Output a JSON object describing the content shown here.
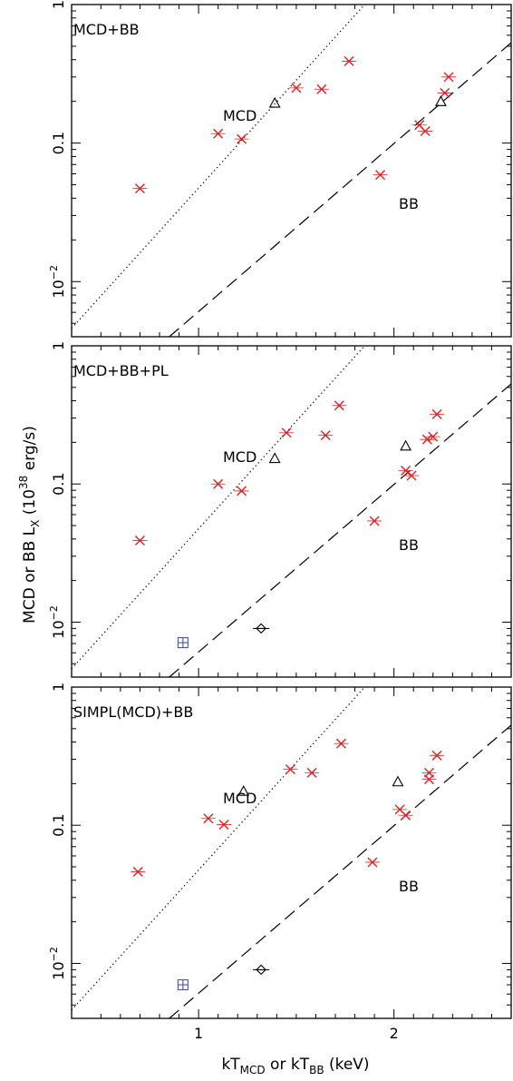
{
  "chart_data": [
    {
      "type": "scatter",
      "panel_label": "MCD+BB",
      "x_scale": "linear",
      "y_scale": "log",
      "xlim": [
        0.35,
        2.6
      ],
      "ylim": [
        0.004,
        1
      ],
      "grid": false,
      "annotations": {
        "mcd_line": "MCD",
        "bb_line": "BB"
      },
      "reference_lines": [
        {
          "name": "MCD",
          "style": "dotted",
          "points": [
            [
              0.35,
              0.0046
            ],
            [
              1.85,
              1.0
            ]
          ]
        },
        {
          "name": "BB",
          "style": "dashed",
          "points": [
            [
              0.85,
              0.004
            ],
            [
              2.6,
              0.53
            ]
          ]
        }
      ],
      "series": [
        {
          "marker": "x",
          "color": "#dd2222",
          "points": [
            [
              0.7,
              0.047
            ],
            [
              1.1,
              0.117
            ],
            [
              1.22,
              0.107
            ],
            [
              1.5,
              0.25
            ],
            [
              1.63,
              0.245
            ],
            [
              1.77,
              0.39
            ],
            [
              1.93,
              0.059
            ],
            [
              2.13,
              0.135
            ],
            [
              2.16,
              0.122
            ],
            [
              2.26,
              0.23
            ],
            [
              2.28,
              0.3
            ]
          ]
        },
        {
          "marker": "triangle",
          "color": "#000000",
          "points": [
            [
              1.39,
              0.193
            ],
            [
              2.24,
              0.198
            ]
          ]
        }
      ]
    },
    {
      "type": "scatter",
      "panel_label": "MCD+BB+PL",
      "x_scale": "linear",
      "y_scale": "log",
      "xlim": [
        0.35,
        2.6
      ],
      "ylim": [
        0.004,
        1
      ],
      "grid": false,
      "annotations": {
        "mcd_line": "MCD",
        "bb_line": "BB"
      },
      "reference_lines": [
        {
          "name": "MCD",
          "style": "dotted",
          "points": [
            [
              0.35,
              0.0046
            ],
            [
              1.85,
              1.0
            ]
          ]
        },
        {
          "name": "BB",
          "style": "dashed",
          "points": [
            [
              0.85,
              0.004
            ],
            [
              2.6,
              0.53
            ]
          ]
        }
      ],
      "series": [
        {
          "marker": "x",
          "color": "#dd2222",
          "points": [
            [
              0.7,
              0.039
            ],
            [
              1.1,
              0.1
            ],
            [
              1.22,
              0.089
            ],
            [
              1.45,
              0.235
            ],
            [
              1.65,
              0.225
            ],
            [
              1.72,
              0.37
            ],
            [
              1.9,
              0.054
            ],
            [
              2.06,
              0.125
            ],
            [
              2.09,
              0.115
            ],
            [
              2.17,
              0.21
            ],
            [
              2.2,
              0.22
            ],
            [
              2.22,
              0.32
            ]
          ]
        },
        {
          "marker": "triangle",
          "color": "#000000",
          "points": [
            [
              1.39,
              0.152
            ],
            [
              2.06,
              0.187
            ]
          ]
        },
        {
          "marker": "square",
          "color": "#4455aa",
          "points": [
            [
              0.92,
              0.0071
            ]
          ]
        },
        {
          "marker": "diamond",
          "color": "#000000",
          "points": [
            [
              1.32,
              0.009
            ]
          ]
        }
      ]
    },
    {
      "type": "scatter",
      "panel_label": "SIMPL(MCD)+BB",
      "x_scale": "linear",
      "y_scale": "log",
      "xlim": [
        0.35,
        2.6
      ],
      "ylim": [
        0.004,
        1
      ],
      "grid": false,
      "annotations": {
        "mcd_line": "MCD",
        "bb_line": "BB"
      },
      "reference_lines": [
        {
          "name": "MCD",
          "style": "dotted",
          "points": [
            [
              0.35,
              0.0046
            ],
            [
              1.85,
              1.0
            ]
          ]
        },
        {
          "name": "BB",
          "style": "dashed",
          "points": [
            [
              0.85,
              0.004
            ],
            [
              2.6,
              0.53
            ]
          ]
        }
      ],
      "series": [
        {
          "marker": "x",
          "color": "#dd2222",
          "points": [
            [
              0.69,
              0.046
            ],
            [
              1.05,
              0.112
            ],
            [
              1.13,
              0.101
            ],
            [
              1.47,
              0.254
            ],
            [
              1.58,
              0.24
            ],
            [
              1.73,
              0.39
            ],
            [
              1.89,
              0.054
            ],
            [
              2.03,
              0.13
            ],
            [
              2.06,
              0.118
            ],
            [
              2.18,
              0.215
            ],
            [
              2.18,
              0.24
            ],
            [
              2.22,
              0.32
            ]
          ]
        },
        {
          "marker": "triangle",
          "color": "#000000",
          "points": [
            [
              1.23,
              0.175
            ],
            [
              2.02,
              0.205
            ]
          ]
        },
        {
          "marker": "square",
          "color": "#4455aa",
          "points": [
            [
              0.92,
              0.007
            ]
          ]
        },
        {
          "marker": "diamond",
          "color": "#000000",
          "points": [
            [
              1.32,
              0.009
            ]
          ]
        }
      ]
    }
  ],
  "axes": {
    "xlabel": "kT_MCD or kT_BB (keV)",
    "ylabel": "MCD or BB L_X (10^38 erg/s)",
    "x_ticks": [
      {
        "value": 1,
        "label": "1"
      },
      {
        "value": 2,
        "label": "2"
      }
    ],
    "y_ticks": [
      {
        "value": 0.01,
        "base": "10",
        "exp": "−2"
      },
      {
        "value": 0.1,
        "label": "0.1"
      },
      {
        "value": 1,
        "label": "1"
      }
    ]
  }
}
